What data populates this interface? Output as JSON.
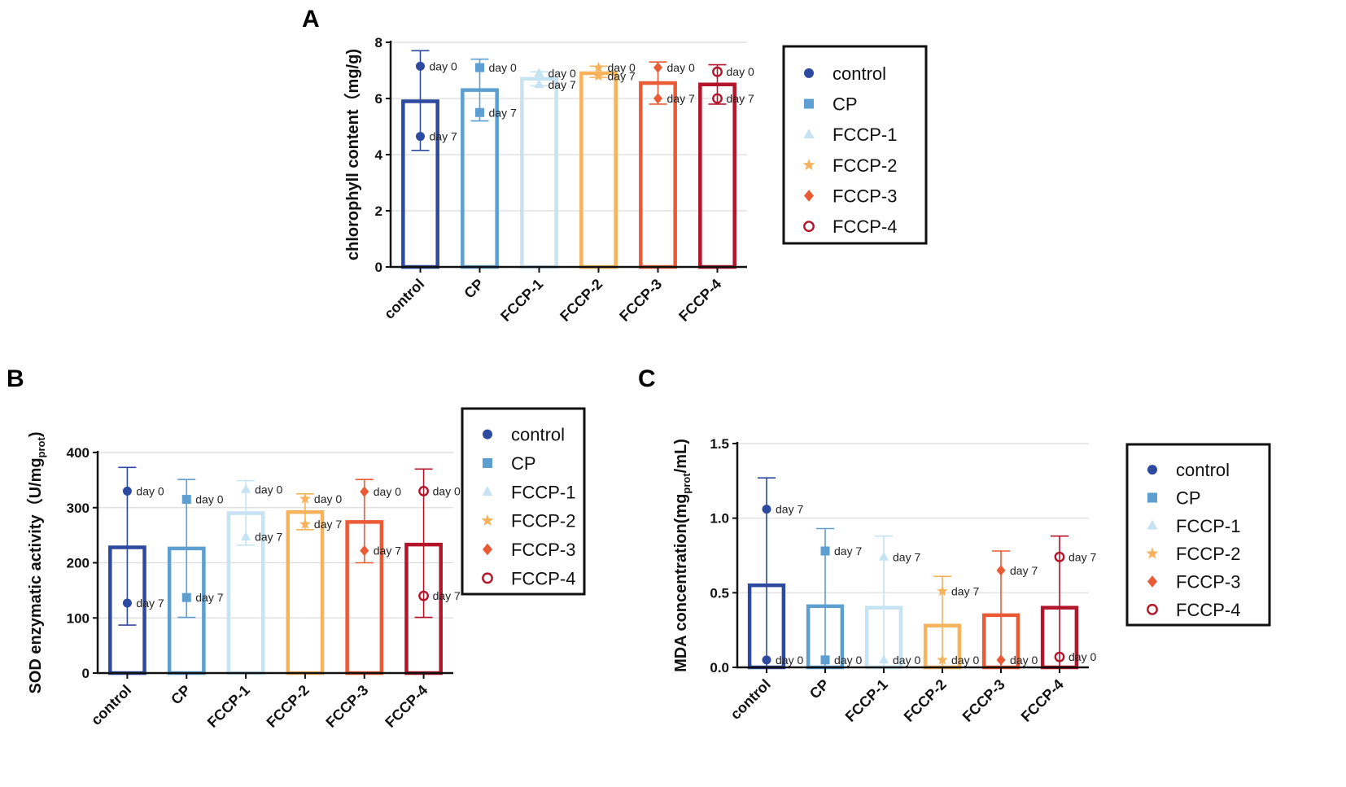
{
  "colors": {
    "control": "#2e4aa0",
    "CP": "#5d9fd0",
    "FCCP-1": "#c5e3f3",
    "FCCP-2": "#f6b35c",
    "FCCP-3": "#ea5b35",
    "FCCP-4": "#b3152b"
  },
  "chart_data": [
    {
      "panel": "A",
      "type": "bar",
      "ylabel": "chlorophyll content（mg/g)",
      "ylim": [
        0,
        8
      ],
      "yticks": [
        "0",
        "2",
        "4",
        "6",
        "8"
      ],
      "categories": [
        "control",
        "CP",
        "FCCP-1",
        "FCCP-2",
        "FCCP-3",
        "FCCP-4"
      ],
      "markers": [
        "circle",
        "square",
        "triangle",
        "star",
        "diamond",
        "ring"
      ],
      "values": [
        5.9,
        6.3,
        6.7,
        6.9,
        6.55,
        6.5
      ],
      "err_low": [
        4.15,
        5.2,
        6.45,
        6.75,
        5.8,
        5.8
      ],
      "err_high": [
        7.7,
        7.4,
        6.95,
        7.15,
        7.3,
        7.2
      ],
      "points": [
        [
          {
            "label": "day 0",
            "value": 7.15
          },
          {
            "label": "day 7",
            "value": 4.65
          }
        ],
        [
          {
            "label": "day 0",
            "value": 7.1
          },
          {
            "label": "day 7",
            "value": 5.5
          }
        ],
        [
          {
            "label": "day 0",
            "value": 6.9
          },
          {
            "label": "day 7",
            "value": 6.5
          }
        ],
        [
          {
            "label": "day 0",
            "value": 7.1
          },
          {
            "label": "day 7",
            "value": 6.8
          }
        ],
        [
          {
            "label": "day 0",
            "value": 7.1
          },
          {
            "label": "day 7",
            "value": 6.0
          }
        ],
        [
          {
            "label": "day 0",
            "value": 6.95
          },
          {
            "label": "day 7",
            "value": 6.0
          }
        ]
      ],
      "legend": [
        "control",
        "CP",
        "FCCP-1",
        "FCCP-2",
        "FCCP-3",
        "FCCP-4"
      ]
    },
    {
      "panel": "B",
      "type": "bar",
      "ylabel": "SOD enzymatic activity（U/mgprot)",
      "ylabel_main": "SOD enzymatic activity（U/mg",
      "ylabel_sub": "prot",
      "ylabel_end": ")",
      "ylim": [
        0,
        400
      ],
      "yticks": [
        "0",
        "100",
        "200",
        "300",
        "400"
      ],
      "categories": [
        "control",
        "CP",
        "FCCP-1",
        "FCCP-2",
        "FCCP-3",
        "FCCP-4"
      ],
      "markers": [
        "circle",
        "square",
        "triangle",
        "star",
        "diamond",
        "ring"
      ],
      "values": [
        228,
        226,
        290,
        292,
        274,
        233
      ],
      "err_low": [
        87,
        101,
        232,
        260,
        200,
        101
      ],
      "err_high": [
        373,
        351,
        349,
        325,
        351,
        370
      ],
      "points": [
        [
          {
            "label": "day 0",
            "value": 330
          },
          {
            "label": "day 7",
            "value": 127
          }
        ],
        [
          {
            "label": "day 0",
            "value": 315
          },
          {
            "label": "day 7",
            "value": 137
          }
        ],
        [
          {
            "label": "day 0",
            "value": 333
          },
          {
            "label": "day 7",
            "value": 247
          }
        ],
        [
          {
            "label": "day 0",
            "value": 316
          },
          {
            "label": "day 7",
            "value": 270
          }
        ],
        [
          {
            "label": "day 0",
            "value": 329
          },
          {
            "label": "day 7",
            "value": 222
          }
        ],
        [
          {
            "label": "day 0",
            "value": 330
          },
          {
            "label": "day 7",
            "value": 140
          }
        ]
      ],
      "legend": [
        "control",
        "CP",
        "FCCP-1",
        "FCCP-2",
        "FCCP-3",
        "FCCP-4"
      ]
    },
    {
      "panel": "C",
      "type": "bar",
      "ylabel": "MDA concentration(mgprot/mL)",
      "ylabel_main": "MDA concentration(mg",
      "ylabel_sub": "prot",
      "ylabel_end": "/mL)",
      "ylim": [
        0,
        1.5
      ],
      "yticks": [
        "0.0",
        "0.5",
        "1.0",
        "1.5"
      ],
      "categories": [
        "control",
        "CP",
        "FCCP-1",
        "FCCP-2",
        "FCCP-3",
        "FCCP-4"
      ],
      "markers": [
        "circle",
        "square",
        "triangle",
        "star",
        "diamond",
        "ring"
      ],
      "values": [
        0.55,
        0.41,
        0.4,
        0.28,
        0.35,
        0.4
      ],
      "err_low": [
        0.0,
        0.0,
        0.0,
        0.0,
        0.0,
        0.0
      ],
      "err_high": [
        1.27,
        0.93,
        0.88,
        0.61,
        0.78,
        0.88
      ],
      "points": [
        [
          {
            "label": "day 0",
            "value": 0.05
          },
          {
            "label": "day 7",
            "value": 1.06
          }
        ],
        [
          {
            "label": "day 0",
            "value": 0.05
          },
          {
            "label": "day 7",
            "value": 0.78
          }
        ],
        [
          {
            "label": "day 0",
            "value": 0.05
          },
          {
            "label": "day 7",
            "value": 0.74
          }
        ],
        [
          {
            "label": "day 0",
            "value": 0.05
          },
          {
            "label": "day 7",
            "value": 0.51
          }
        ],
        [
          {
            "label": "day 0",
            "value": 0.05
          },
          {
            "label": "day 7",
            "value": 0.65
          }
        ],
        [
          {
            "label": "day 0",
            "value": 0.07
          },
          {
            "label": "day 7",
            "value": 0.74
          }
        ]
      ],
      "legend": [
        "control",
        "CP",
        "FCCP-1",
        "FCCP-2",
        "FCCP-3",
        "FCCP-4"
      ]
    }
  ]
}
